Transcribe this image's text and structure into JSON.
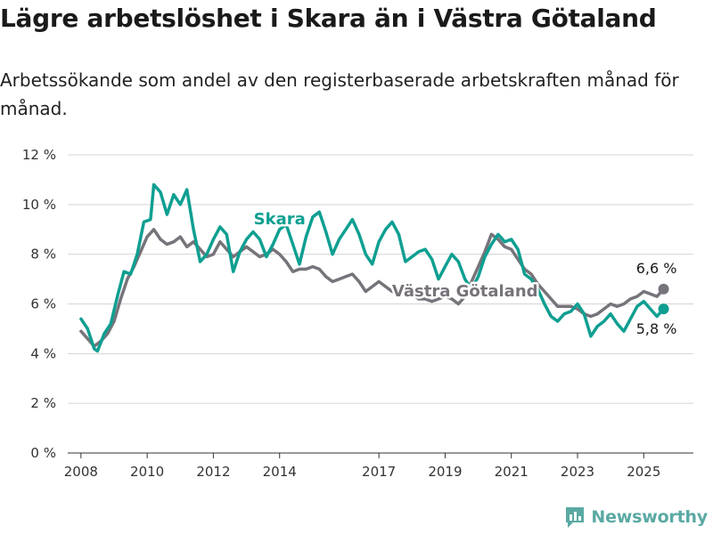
{
  "title": "Lägre arbetslöshet i Skara än i Västra Götaland",
  "subtitle": "Arbetssökande som andel av den registerbaserade arbetskraften månad för månad.",
  "brand": {
    "name": "Newsworthy",
    "icon": "newsworthy-logo-icon",
    "color": "#5aa9a3"
  },
  "chart_data": {
    "type": "line",
    "x_range": [
      2007.6,
      2026.5
    ],
    "ylim": [
      0,
      12
    ],
    "y_ticks": [
      0,
      2,
      4,
      6,
      8,
      10,
      12
    ],
    "y_tick_labels": [
      "0 %",
      "2 %",
      "4 %",
      "6 %",
      "8 %",
      "10 %",
      "12 %"
    ],
    "x_ticks": [
      2008,
      2010,
      2012,
      2014,
      2017,
      2019,
      2021,
      2023,
      2025
    ],
    "x_tick_labels": [
      "2008",
      "2010",
      "2012",
      "2014",
      "2017",
      "2019",
      "2021",
      "2023",
      "2025"
    ],
    "grid": "horizontal",
    "series": [
      {
        "name": "Västra Götaland",
        "color": "#77737a",
        "end_value_label": "6,6 %",
        "points": [
          [
            2008.0,
            4.9
          ],
          [
            2008.2,
            4.6
          ],
          [
            2008.4,
            4.3
          ],
          [
            2008.6,
            4.5
          ],
          [
            2008.8,
            4.8
          ],
          [
            2009.0,
            5.3
          ],
          [
            2009.2,
            6.2
          ],
          [
            2009.4,
            7.0
          ],
          [
            2009.6,
            7.5
          ],
          [
            2009.8,
            8.1
          ],
          [
            2010.0,
            8.7
          ],
          [
            2010.2,
            9.0
          ],
          [
            2010.4,
            8.6
          ],
          [
            2010.6,
            8.4
          ],
          [
            2010.8,
            8.5
          ],
          [
            2011.0,
            8.7
          ],
          [
            2011.2,
            8.3
          ],
          [
            2011.4,
            8.5
          ],
          [
            2011.6,
            8.2
          ],
          [
            2011.8,
            7.9
          ],
          [
            2012.0,
            8.0
          ],
          [
            2012.2,
            8.5
          ],
          [
            2012.4,
            8.2
          ],
          [
            2012.6,
            7.9
          ],
          [
            2012.8,
            8.1
          ],
          [
            2013.0,
            8.3
          ],
          [
            2013.2,
            8.1
          ],
          [
            2013.4,
            7.9
          ],
          [
            2013.6,
            8.0
          ],
          [
            2013.8,
            8.2
          ],
          [
            2014.0,
            8.0
          ],
          [
            2014.2,
            7.7
          ],
          [
            2014.4,
            7.3
          ],
          [
            2014.6,
            7.4
          ],
          [
            2014.8,
            7.4
          ],
          [
            2015.0,
            7.5
          ],
          [
            2015.2,
            7.4
          ],
          [
            2015.4,
            7.1
          ],
          [
            2015.6,
            6.9
          ],
          [
            2015.8,
            7.0
          ],
          [
            2016.0,
            7.1
          ],
          [
            2016.2,
            7.2
          ],
          [
            2016.4,
            6.9
          ],
          [
            2016.6,
            6.5
          ],
          [
            2016.8,
            6.7
          ],
          [
            2017.0,
            6.9
          ],
          [
            2017.2,
            6.7
          ],
          [
            2017.4,
            6.5
          ],
          [
            2017.6,
            6.4
          ],
          [
            2017.8,
            6.5
          ],
          [
            2018.0,
            6.4
          ],
          [
            2018.2,
            6.2
          ],
          [
            2018.4,
            6.2
          ],
          [
            2018.6,
            6.1
          ],
          [
            2018.8,
            6.2
          ],
          [
            2019.0,
            6.3
          ],
          [
            2019.2,
            6.2
          ],
          [
            2019.4,
            6.0
          ],
          [
            2019.6,
            6.3
          ],
          [
            2019.8,
            6.9
          ],
          [
            2020.0,
            7.5
          ],
          [
            2020.2,
            8.1
          ],
          [
            2020.4,
            8.8
          ],
          [
            2020.6,
            8.6
          ],
          [
            2020.8,
            8.3
          ],
          [
            2021.0,
            8.2
          ],
          [
            2021.2,
            7.8
          ],
          [
            2021.4,
            7.4
          ],
          [
            2021.6,
            7.2
          ],
          [
            2021.8,
            6.8
          ],
          [
            2022.0,
            6.5
          ],
          [
            2022.2,
            6.2
          ],
          [
            2022.4,
            5.9
          ],
          [
            2022.6,
            5.9
          ],
          [
            2022.8,
            5.9
          ],
          [
            2023.0,
            5.8
          ],
          [
            2023.2,
            5.6
          ],
          [
            2023.4,
            5.5
          ],
          [
            2023.6,
            5.6
          ],
          [
            2023.8,
            5.8
          ],
          [
            2024.0,
            6.0
          ],
          [
            2024.2,
            5.9
          ],
          [
            2024.4,
            6.0
          ],
          [
            2024.6,
            6.2
          ],
          [
            2024.8,
            6.3
          ],
          [
            2025.0,
            6.5
          ],
          [
            2025.2,
            6.4
          ],
          [
            2025.4,
            6.3
          ],
          [
            2025.6,
            6.6
          ]
        ]
      },
      {
        "name": "Skara",
        "color": "#0e9f91",
        "end_value_label": "5,8 %",
        "points": [
          [
            2008.0,
            5.4
          ],
          [
            2008.2,
            5.0
          ],
          [
            2008.4,
            4.2
          ],
          [
            2008.5,
            4.1
          ],
          [
            2008.7,
            4.8
          ],
          [
            2008.9,
            5.2
          ],
          [
            2009.1,
            6.3
          ],
          [
            2009.3,
            7.3
          ],
          [
            2009.5,
            7.2
          ],
          [
            2009.7,
            8.0
          ],
          [
            2009.9,
            9.3
          ],
          [
            2010.1,
            9.4
          ],
          [
            2010.2,
            10.8
          ],
          [
            2010.4,
            10.5
          ],
          [
            2010.6,
            9.6
          ],
          [
            2010.8,
            10.4
          ],
          [
            2011.0,
            10.0
          ],
          [
            2011.2,
            10.6
          ],
          [
            2011.4,
            9.0
          ],
          [
            2011.6,
            7.7
          ],
          [
            2011.8,
            8.0
          ],
          [
            2012.0,
            8.6
          ],
          [
            2012.2,
            9.1
          ],
          [
            2012.4,
            8.8
          ],
          [
            2012.6,
            7.3
          ],
          [
            2012.8,
            8.1
          ],
          [
            2013.0,
            8.6
          ],
          [
            2013.2,
            8.9
          ],
          [
            2013.4,
            8.6
          ],
          [
            2013.6,
            7.9
          ],
          [
            2013.8,
            8.4
          ],
          [
            2014.0,
            9.0
          ],
          [
            2014.2,
            9.2
          ],
          [
            2014.4,
            8.4
          ],
          [
            2014.6,
            7.6
          ],
          [
            2014.8,
            8.7
          ],
          [
            2015.0,
            9.5
          ],
          [
            2015.2,
            9.7
          ],
          [
            2015.4,
            8.9
          ],
          [
            2015.6,
            8.0
          ],
          [
            2015.8,
            8.6
          ],
          [
            2016.0,
            9.0
          ],
          [
            2016.2,
            9.4
          ],
          [
            2016.4,
            8.8
          ],
          [
            2016.6,
            8.0
          ],
          [
            2016.8,
            7.6
          ],
          [
            2017.0,
            8.5
          ],
          [
            2017.2,
            9.0
          ],
          [
            2017.4,
            9.3
          ],
          [
            2017.6,
            8.8
          ],
          [
            2017.8,
            7.7
          ],
          [
            2018.0,
            7.9
          ],
          [
            2018.2,
            8.1
          ],
          [
            2018.4,
            8.2
          ],
          [
            2018.6,
            7.8
          ],
          [
            2018.8,
            7.0
          ],
          [
            2019.0,
            7.5
          ],
          [
            2019.2,
            8.0
          ],
          [
            2019.4,
            7.7
          ],
          [
            2019.6,
            7.0
          ],
          [
            2019.8,
            6.6
          ],
          [
            2020.0,
            7.1
          ],
          [
            2020.2,
            7.9
          ],
          [
            2020.4,
            8.4
          ],
          [
            2020.6,
            8.8
          ],
          [
            2020.8,
            8.5
          ],
          [
            2021.0,
            8.6
          ],
          [
            2021.2,
            8.2
          ],
          [
            2021.4,
            7.2
          ],
          [
            2021.6,
            7.0
          ],
          [
            2021.8,
            6.6
          ],
          [
            2022.0,
            6.0
          ],
          [
            2022.2,
            5.5
          ],
          [
            2022.4,
            5.3
          ],
          [
            2022.6,
            5.6
          ],
          [
            2022.8,
            5.7
          ],
          [
            2023.0,
            6.0
          ],
          [
            2023.2,
            5.6
          ],
          [
            2023.4,
            4.7
          ],
          [
            2023.6,
            5.1
          ],
          [
            2023.8,
            5.3
          ],
          [
            2024.0,
            5.6
          ],
          [
            2024.2,
            5.2
          ],
          [
            2024.4,
            4.9
          ],
          [
            2024.6,
            5.4
          ],
          [
            2024.8,
            5.9
          ],
          [
            2025.0,
            6.1
          ],
          [
            2025.2,
            5.8
          ],
          [
            2025.4,
            5.5
          ],
          [
            2025.6,
            5.8
          ]
        ]
      }
    ],
    "annotations": [
      {
        "series": "Skara",
        "text": "Skara",
        "x": 2014.0,
        "y": 9.2
      },
      {
        "series": "Västra Götaland",
        "text": "Västra Götaland",
        "x": 2019.6,
        "y": 6.3
      }
    ]
  }
}
